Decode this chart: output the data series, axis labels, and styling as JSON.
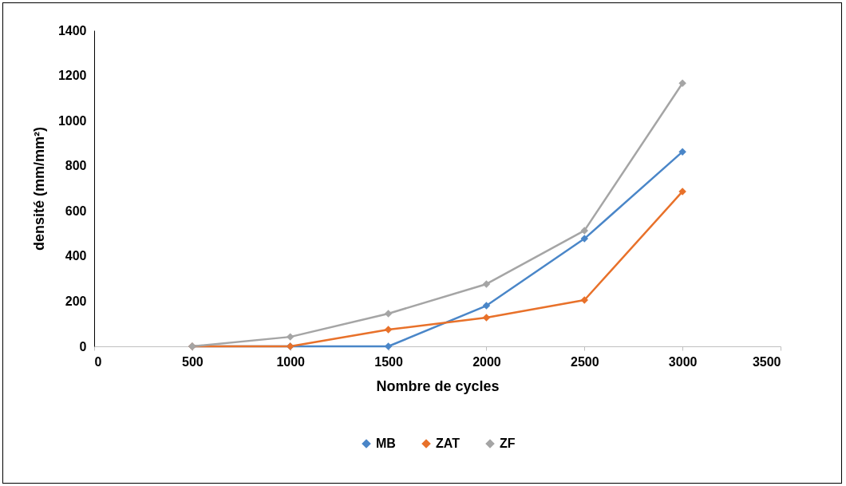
{
  "chart_data": {
    "type": "line",
    "xlabel": "Nombre de cycles",
    "ylabel": "densité (mm/mm²)",
    "x": [
      500,
      1000,
      1500,
      2000,
      2500,
      3000
    ],
    "series": [
      {
        "name": "MB",
        "color": "#4a86c8",
        "values": [
          0,
          0,
          0,
          180,
          477,
          862
        ]
      },
      {
        "name": "ZAT",
        "color": "#e8712a",
        "values": [
          0,
          0,
          74,
          127,
          205,
          686
        ]
      },
      {
        "name": "ZF",
        "color": "#a5a5a5",
        "values": [
          0,
          42,
          145,
          276,
          513,
          1166
        ]
      }
    ],
    "xlim": [
      0,
      3500
    ],
    "xticks": [
      0,
      500,
      1000,
      1500,
      2000,
      2500,
      3000,
      3500
    ],
    "ylim": [
      0,
      1400
    ],
    "yticks": [
      0,
      200,
      400,
      600,
      800,
      1000,
      1200,
      1400
    ],
    "grid": false,
    "legend": "bottom",
    "marker": "diamond",
    "line_style": "solid"
  }
}
